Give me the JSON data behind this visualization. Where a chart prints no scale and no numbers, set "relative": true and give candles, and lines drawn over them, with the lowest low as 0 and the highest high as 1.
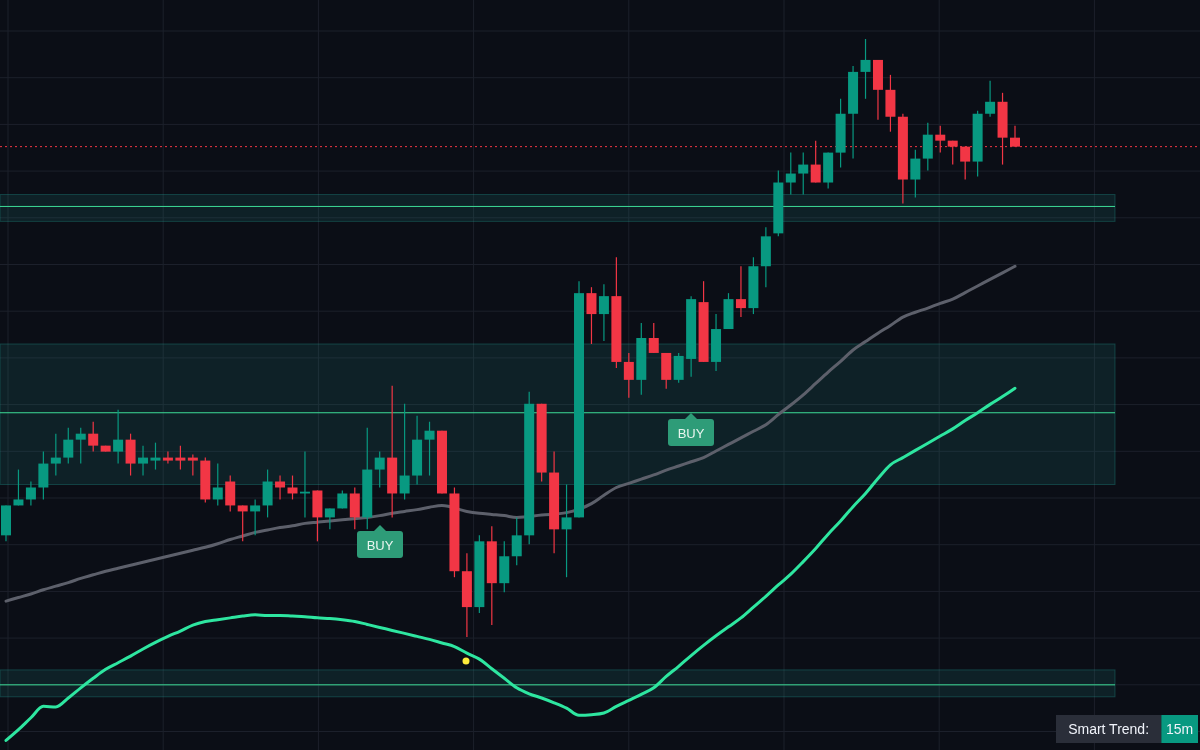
{
  "chart_data": {
    "type": "candlestick",
    "relative": true,
    "grid": true,
    "categories": [
      null,
      null,
      null,
      null,
      null,
      null,
      null,
      null,
      null,
      null,
      null,
      null,
      null,
      null,
      null,
      null,
      null,
      null,
      null,
      null,
      null,
      null,
      null,
      null,
      null,
      null,
      null,
      null,
      null,
      null,
      null,
      null,
      null,
      null,
      null,
      null,
      null,
      null,
      null,
      null,
      null,
      null,
      null,
      null,
      null,
      null,
      null,
      null,
      null,
      null,
      null,
      null,
      null,
      null,
      null,
      null,
      null,
      null,
      null,
      null,
      null,
      null,
      null,
      null,
      null,
      null,
      null,
      null,
      null,
      null,
      null,
      null,
      null,
      null,
      null,
      null,
      null,
      null,
      null,
      null,
      null,
      null
    ],
    "ohlc": [
      [
        0.17,
        0.22,
        0.16,
        0.22
      ],
      [
        0.22,
        0.28,
        0.22,
        0.23
      ],
      [
        0.23,
        0.26,
        0.22,
        0.25
      ],
      [
        0.25,
        0.31,
        0.23,
        0.29
      ],
      [
        0.29,
        0.34,
        0.27,
        0.3
      ],
      [
        0.3,
        0.35,
        0.29,
        0.33
      ],
      [
        0.33,
        0.35,
        0.29,
        0.34
      ],
      [
        0.34,
        0.36,
        0.31,
        0.32
      ],
      [
        0.32,
        0.32,
        0.31,
        0.31
      ],
      [
        0.31,
        0.38,
        0.29,
        0.33
      ],
      [
        0.33,
        0.34,
        0.27,
        0.29
      ],
      [
        0.29,
        0.32,
        0.27,
        0.3
      ],
      [
        0.295,
        0.325,
        0.28,
        0.3
      ],
      [
        0.3,
        0.31,
        0.29,
        0.295
      ],
      [
        0.3,
        0.32,
        0.28,
        0.295
      ],
      [
        0.3,
        0.305,
        0.27,
        0.295
      ],
      [
        0.295,
        0.3,
        0.225,
        0.23
      ],
      [
        0.23,
        0.29,
        0.22,
        0.25
      ],
      [
        0.26,
        0.27,
        0.21,
        0.22
      ],
      [
        0.22,
        0.22,
        0.16,
        0.21
      ],
      [
        0.21,
        0.23,
        0.17,
        0.22
      ],
      [
        0.22,
        0.28,
        0.2,
        0.26
      ],
      [
        0.26,
        0.27,
        0.23,
        0.25
      ],
      [
        0.25,
        0.27,
        0.23,
        0.24
      ],
      [
        0.24,
        0.31,
        0.2,
        0.243
      ],
      [
        0.245,
        0.245,
        0.16,
        0.2
      ],
      [
        0.2,
        0.215,
        0.18,
        0.215
      ],
      [
        0.215,
        0.245,
        0.215,
        0.24
      ],
      [
        0.24,
        0.25,
        0.18,
        0.2
      ],
      [
        0.2,
        0.35,
        0.18,
        0.28
      ],
      [
        0.28,
        0.31,
        0.25,
        0.3
      ],
      [
        0.3,
        0.42,
        0.2,
        0.24
      ],
      [
        0.24,
        0.39,
        0.23,
        0.27
      ],
      [
        0.27,
        0.37,
        0.255,
        0.33
      ],
      [
        0.33,
        0.36,
        0.27,
        0.345
      ],
      [
        0.345,
        0.345,
        0.24,
        0.24
      ],
      [
        0.24,
        0.25,
        0.1,
        0.11
      ],
      [
        0.11,
        0.14,
        0,
        0.05
      ],
      [
        0.05,
        0.17,
        0.04,
        0.16
      ],
      [
        0.16,
        0.185,
        0.02,
        0.09
      ],
      [
        0.09,
        0.16,
        0.075,
        0.135
      ],
      [
        0.135,
        0.2,
        0.12,
        0.17
      ],
      [
        0.17,
        0.41,
        0.155,
        0.39
      ],
      [
        0.39,
        0.39,
        0.26,
        0.275
      ],
      [
        0.275,
        0.31,
        0.14,
        0.18
      ],
      [
        0.18,
        0.255,
        0.1,
        0.2
      ],
      [
        0.2,
        0.595,
        0.2,
        0.575
      ],
      [
        0.575,
        0.585,
        0.49,
        0.54
      ],
      [
        0.54,
        0.59,
        0.495,
        0.57
      ],
      [
        0.57,
        0.635,
        0.45,
        0.46
      ],
      [
        0.46,
        0.475,
        0.4,
        0.43
      ],
      [
        0.43,
        0.525,
        0.405,
        0.5
      ],
      [
        0.5,
        0.525,
        0.475,
        0.475
      ],
      [
        0.475,
        0.475,
        0.415,
        0.43
      ],
      [
        0.43,
        0.475,
        0.425,
        0.47
      ],
      [
        0.465,
        0.57,
        0.435,
        0.565
      ],
      [
        0.56,
        0.595,
        0.46,
        0.46
      ],
      [
        0.46,
        0.54,
        0.445,
        0.515
      ],
      [
        0.515,
        0.575,
        0.515,
        0.565
      ],
      [
        0.565,
        0.62,
        0.535,
        0.55
      ],
      [
        0.55,
        0.635,
        0.54,
        0.62
      ],
      [
        0.62,
        0.685,
        0.585,
        0.67
      ],
      [
        0.675,
        0.78,
        0.67,
        0.76
      ],
      [
        0.76,
        0.81,
        0.74,
        0.775
      ],
      [
        0.775,
        0.81,
        0.74,
        0.79
      ],
      [
        0.79,
        0.83,
        0.76,
        0.76
      ],
      [
        0.76,
        0.81,
        0.75,
        0.81
      ],
      [
        0.81,
        0.9,
        0.785,
        0.875
      ],
      [
        0.875,
        0.955,
        0.8,
        0.945
      ],
      [
        0.945,
        1,
        0.9,
        0.965
      ],
      [
        0.965,
        0.965,
        0.865,
        0.915
      ],
      [
        0.915,
        0.94,
        0.845,
        0.87
      ],
      [
        0.87,
        0.875,
        0.725,
        0.765
      ],
      [
        0.765,
        0.815,
        0.735,
        0.8
      ],
      [
        0.8,
        0.86,
        0.78,
        0.84
      ],
      [
        0.84,
        0.855,
        0.81,
        0.83
      ],
      [
        0.83,
        0.83,
        0.79,
        0.82
      ],
      [
        0.82,
        0.82,
        0.765,
        0.795
      ],
      [
        0.795,
        0.88,
        0.77,
        0.875
      ],
      [
        0.875,
        0.93,
        0.87,
        0.895
      ],
      [
        0.895,
        0.91,
        0.79,
        0.835
      ],
      [
        0.835,
        0.855,
        0.82,
        0.82
      ]
    ],
    "series": [
      {
        "type": "line",
        "color": "#5d606b",
        "values": [
          0.06,
          0.066,
          0.072,
          0.079,
          0.085,
          0.091,
          0.098,
          0.104,
          0.11,
          0.115,
          0.12,
          0.125,
          0.13,
          0.135,
          0.14,
          0.145,
          0.15,
          0.156,
          0.163,
          0.169,
          0.175,
          0.179,
          0.183,
          0.186,
          0.19,
          0.192,
          0.194,
          0.196,
          0.198,
          0.2,
          0.203,
          0.207,
          0.21,
          0.213,
          0.217,
          0.22,
          null,
          0.21,
          0.207,
          0.205,
          0.203,
          0.2,
          null,
          0.204,
          null,
          0.208,
          null,
          0.223,
          0.237,
          0.25,
          0.257,
          0.264,
          0.271,
          0.279,
          0.286,
          0.293,
          0.3,
          0.311,
          0.322,
          0.333,
          0.344,
          0.355,
          0.372,
          0.388,
          0.405,
          0.424,
          0.443,
          0.461,
          0.48,
          0.494,
          0.508,
          0.521,
          0.535,
          0.543,
          0.55,
          0.558,
          0.565,
          0.576,
          0.587,
          0.598,
          0.609,
          0.62
        ]
      },
      {
        "type": "line",
        "color": "#2ee6a0",
        "values": [
          -0.173,
          -0.155,
          -0.135,
          -0.116,
          -0.117,
          -0.102,
          -0.085,
          -0.069,
          -0.054,
          -0.043,
          -0.032,
          -0.02,
          -0.009,
          0.001,
          0.01,
          0.02,
          0.026,
          0.029,
          0.032,
          0.035,
          0.037,
          0.036,
          0.036,
          0.035,
          0.034,
          0.032,
          0.031,
          0.029,
          0.026,
          0.021,
          0.016,
          0.011,
          0.006,
          0.001,
          -0.004,
          -0.01,
          -0.016,
          -0.027,
          -0.037,
          -0.053,
          -0.069,
          -0.085,
          -0.095,
          -0.102,
          -0.11,
          -0.119,
          -0.131,
          -0.13,
          -0.127,
          -0.116,
          -0.106,
          -0.096,
          -0.085,
          -0.066,
          -0.049,
          -0.031,
          -0.014,
          0.002,
          0.017,
          0.032,
          0.05,
          0.068,
          0.087,
          0.105,
          0.126,
          0.148,
          0.172,
          0.194,
          0.218,
          0.24,
          0.265,
          0.288,
          0.3,
          0.312,
          0.324,
          0.336,
          0.348,
          0.362,
          0.375,
          0.389,
          0.402,
          0.416
        ]
      }
    ],
    "bands": [
      {
        "axis": "y",
        "from": 0.695,
        "to": 0.74,
        "color": "#26a69a"
      },
      {
        "axis": "y",
        "from": 0.255,
        "to": 0.49,
        "color": "#26a69a"
      },
      {
        "axis": "y",
        "from": -0.1,
        "to": -0.055,
        "color": "#26a69a"
      }
    ],
    "ref_lines": [
      {
        "axis": "y",
        "value": 0.72,
        "color": "#3ddc97",
        "line_style": "solid"
      },
      {
        "axis": "y",
        "value": 0.375,
        "color": "#3ddc97",
        "line_style": "solid"
      },
      {
        "axis": "y",
        "value": -0.08,
        "color": "#3ddc97",
        "line_style": "solid"
      },
      {
        "axis": "y",
        "value": 0.82,
        "color": "#f23645",
        "line_style": "dotted"
      }
    ],
    "annotations": [
      "BUY",
      "BUY",
      "Smart Trend:",
      "15m"
    ]
  }
}
